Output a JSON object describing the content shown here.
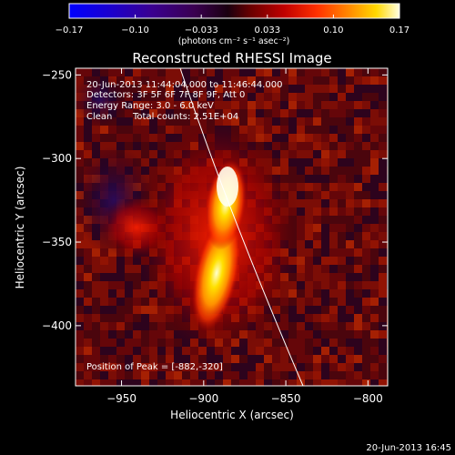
{
  "colorbar": {
    "ticks": [
      "-0.17",
      "-0.10",
      "-0.033",
      "0.033",
      "0.10",
      "0.17"
    ],
    "units": "(photons cm⁻² s⁻¹ asec⁻²)",
    "range": [
      -0.17,
      0.17
    ]
  },
  "title": "Reconstructed RHESSI Image",
  "info": {
    "time_range": "20-Jun-2013 11:44:04.000 to 11:46:44.000",
    "detectors": "Detectors: 3F 5F 6F 7F 8F 9F, Att 0",
    "energy": "Energy Range: 3.0 - 6.0 keV",
    "algorithm": "Clean",
    "counts": "Total counts: 2.51E+04"
  },
  "peak_label": "Position of Peak = [-882,-320]",
  "peak": {
    "x": -882,
    "y": -320
  },
  "x_axis": {
    "label": "Heliocentric X (arcsec)",
    "ticks": [
      {
        "value": -950,
        "label": "−950"
      },
      {
        "value": -900,
        "label": "−900"
      },
      {
        "value": -850,
        "label": "−850"
      },
      {
        "value": -800,
        "label": "−800"
      }
    ],
    "range": [
      -978,
      -788
    ]
  },
  "y_axis": {
    "label": "Heliocentric Y (arcsec)",
    "ticks": [
      {
        "value": -250,
        "label": "−250"
      },
      {
        "value": -300,
        "label": "−300"
      },
      {
        "value": -350,
        "label": "−350"
      },
      {
        "value": -400,
        "label": "−400"
      }
    ],
    "range": [
      -436,
      -246
    ]
  },
  "footer_timestamp": "20-Jun-2013 16:45"
}
